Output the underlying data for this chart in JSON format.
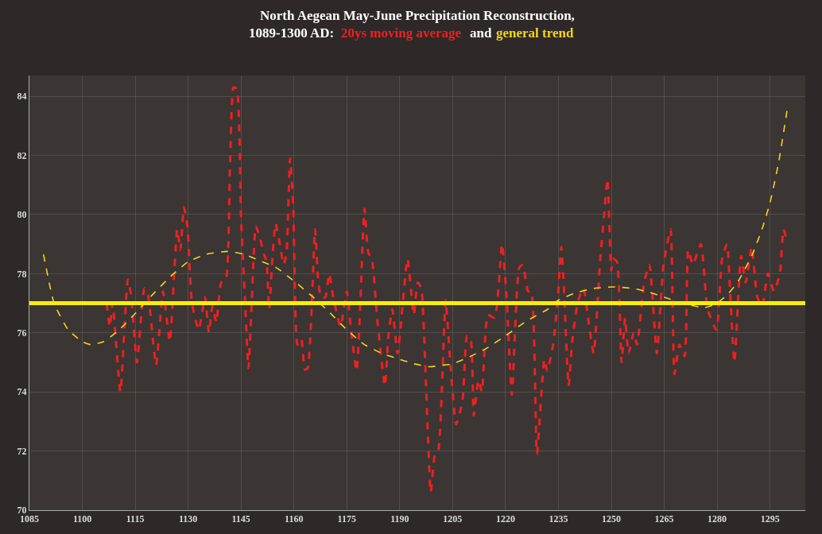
{
  "chart_data": {
    "type": "line",
    "title": "North Aegean May-June Precipitation Reconstruction,\n1089-1300 AD:",
    "annotations": [
      "and"
    ],
    "xlim": [
      1085,
      1305
    ],
    "xticks": [
      1085,
      1100,
      1115,
      1130,
      1145,
      1160,
      1175,
      1190,
      1205,
      1220,
      1235,
      1250,
      1265,
      1280,
      1295
    ],
    "ylim": [
      70,
      84.7
    ],
    "yticks": [
      70,
      72,
      74,
      76,
      78,
      80,
      82,
      84
    ],
    "grid": true,
    "legend": false,
    "marker": "none",
    "line_style": "dashed",
    "ref_lines": [
      {
        "axis": "y",
        "value": 77,
        "color": "#ffee00",
        "line_style": "solid"
      }
    ],
    "series": [
      {
        "name": "20ys moving average",
        "color": "#ee2020",
        "x": [
          1106.9,
          1107.8,
          1108.6,
          1109.4,
          1110.8,
          1112.9,
          1113.8,
          1115.5,
          1117.6,
          1118.6,
          1120.9,
          1122.9,
          1124.8,
          1126.9,
          1127.8,
          1128.8,
          1129.8,
          1131.1,
          1133,
          1134.8,
          1135.9,
          1136.9,
          1138,
          1139.4,
          1140.7,
          1141.9,
          1142.9,
          1143.8,
          1145,
          1146.1,
          1147.1,
          1148,
          1149.2,
          1150.3,
          1151.5,
          1152.2,
          1153,
          1154,
          1154.8,
          1156,
          1157.1,
          1157.9,
          1158.9,
          1159.8,
          1161,
          1162.1,
          1163.1,
          1163.9,
          1166,
          1166.8,
          1167.7,
          1168.9,
          1170,
          1171,
          1173.2,
          1175,
          1176.1,
          1177.8,
          1178.8,
          1180,
          1181.1,
          1182.1,
          1183.6,
          1185.8,
          1186.8,
          1187.9,
          1189.4,
          1192.2,
          1194,
          1195.1,
          1196.1,
          1197.4,
          1198.8,
          1200,
          1200.9,
          1203,
          1204.1,
          1206,
          1207.8,
          1209.1,
          1210.1,
          1211,
          1212.3,
          1213.3,
          1215,
          1216.9,
          1219,
          1220.3,
          1221.8,
          1223.9,
          1224.9,
          1226.4,
          1227.3,
          1228.9,
          1231,
          1231.8,
          1233.5,
          1234.8,
          1235.8,
          1236.4,
          1237.9,
          1238.9,
          1240.6,
          1242.1,
          1243.5,
          1245,
          1246.8,
          1247.9,
          1248.9,
          1250,
          1250.6,
          1251.6,
          1252.9,
          1253.9,
          1254.9,
          1256.3,
          1257.3,
          1259.3,
          1260.8,
          1262.9,
          1264.8,
          1266.8,
          1267.9,
          1269.3,
          1270.8,
          1271.8,
          1273.1,
          1275.4,
          1277.3,
          1279.8,
          1281.4,
          1282.8,
          1283.8,
          1284.9,
          1286.8,
          1288.1,
          1289.8,
          1291.4,
          1292.8,
          1294.4,
          1296.1,
          1297.8,
          1298.8,
          1299.8
        ],
        "values": [
          77.0,
          76.2,
          77.0,
          75.9,
          74.0,
          77.8,
          77.3,
          75.0,
          77.5,
          77.3,
          74.9,
          77.4,
          75.7,
          79.5,
          78.8,
          80.25,
          79.6,
          77.0,
          76.1,
          77.2,
          76.0,
          76.9,
          76.35,
          77.7,
          77.8,
          81.8,
          84.3,
          84.25,
          79.9,
          77.2,
          74.8,
          76.9,
          79.6,
          79.25,
          78.65,
          78.45,
          76.8,
          78.7,
          79.7,
          79.0,
          78.3,
          78.7,
          81.9,
          80.3,
          75.6,
          75.8,
          74.75,
          74.8,
          79.5,
          77.9,
          77.2,
          77.2,
          78.0,
          77.3,
          76.2,
          77.4,
          76.2,
          74.7,
          76.9,
          80.2,
          78.7,
          78.5,
          76.5,
          74.2,
          75.9,
          76.8,
          75.3,
          78.5,
          76.6,
          77.7,
          77.5,
          74.4,
          70.6,
          71.9,
          72.0,
          77.1,
          75.4,
          72.9,
          73.7,
          75.9,
          75.8,
          73.2,
          74.4,
          74.0,
          76.6,
          76.5,
          79.0,
          77.2,
          73.9,
          78.2,
          78.3,
          77.4,
          77.4,
          71.9,
          75.1,
          74.7,
          75.6,
          77.1,
          78.9,
          77.9,
          74.2,
          75.7,
          77.1,
          77.5,
          76.4,
          75.3,
          78.4,
          79.9,
          81.2,
          78.1,
          78.5,
          78.4,
          75.0,
          76.5,
          75.3,
          76.0,
          75.6,
          77.7,
          78.3,
          75.3,
          78.3,
          79.5,
          74.6,
          75.6,
          75.2,
          78.8,
          78.3,
          79.0,
          76.8,
          76.1,
          78.5,
          79.0,
          77.1,
          75.0,
          78.6,
          77.7,
          78.9,
          77.2,
          76.9,
          78.0,
          77.4,
          78.0,
          79.5,
          79.1
        ]
      },
      {
        "name": "general trend",
        "color": "#f5d41c",
        "x": [
          1089,
          1092,
          1096,
          1100,
          1102.3,
          1106,
          1110,
          1115,
          1120,
          1125,
          1130,
          1135,
          1141,
          1146,
          1150,
          1155,
          1160,
          1165,
          1170,
          1175,
          1180,
          1185,
          1190,
          1194,
          1198.5,
          1202,
          1205,
          1210,
          1215,
          1220,
          1226,
          1232,
          1235,
          1240,
          1245,
          1251,
          1256,
          1260,
          1265,
          1270,
          1276.4,
          1280,
          1283,
          1286,
          1290,
          1293,
          1295,
          1297.5,
          1299.8
        ],
        "values": [
          78.65,
          77.0,
          76.1,
          75.7,
          75.6,
          75.7,
          76.05,
          76.65,
          77.3,
          77.9,
          78.4,
          78.65,
          78.75,
          78.65,
          78.45,
          78.2,
          77.75,
          77.25,
          76.7,
          76.1,
          75.6,
          75.3,
          75.1,
          74.95,
          74.85,
          74.9,
          74.95,
          75.2,
          75.5,
          75.9,
          76.4,
          76.8,
          77.1,
          77.35,
          77.5,
          77.55,
          77.5,
          77.4,
          77.2,
          77.0,
          76.85,
          77.0,
          77.3,
          77.75,
          78.65,
          79.6,
          80.4,
          81.8,
          83.5
        ]
      }
    ]
  }
}
